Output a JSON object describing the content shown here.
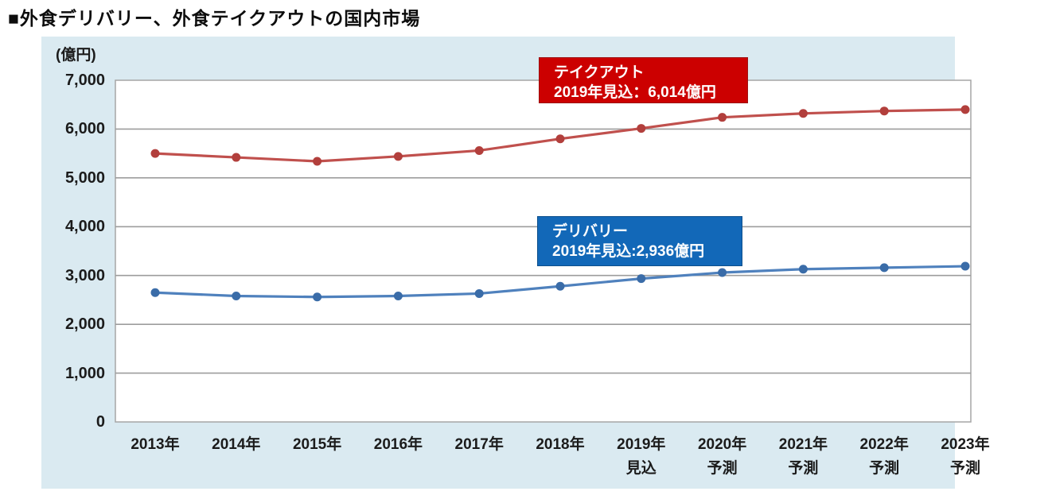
{
  "page": {
    "title": "■外食デリバリー、外食テイクアウトの国内市場"
  },
  "colors": {
    "panel_bg": "#daeaf1",
    "plot_bg": "#ffffff",
    "plot_border": "#a6a6a6",
    "gridline": "#9d9d9d",
    "takeout_line": "#c0504d",
    "takeout_marker": "#b23f3c",
    "takeout_box": "#cc0000",
    "delivery_line": "#4f81bd",
    "delivery_marker": "#3a6ca8",
    "delivery_box": "#1268b8",
    "axis_text": "#1b1b1b"
  },
  "chart_data": {
    "type": "line",
    "title": "外食デリバリー、外食テイクアウトの国内市場",
    "unit": "(億円)",
    "xlabel": "",
    "ylabel": "億円",
    "ylim": [
      0,
      7000
    ],
    "ytick_interval": 1000,
    "grid": "horizontal",
    "legend": "inline-callout-boxes",
    "categories": [
      "2013年",
      "2014年",
      "2015年",
      "2016年",
      "2017年",
      "2018年",
      "2019年",
      "2020年",
      "2021年",
      "2022年",
      "2023年"
    ],
    "category_notes": [
      "",
      "",
      "",
      "",
      "",
      "",
      "見込",
      "予測",
      "予測",
      "予測",
      "予測"
    ],
    "series": [
      {
        "id": "takeout",
        "name": "テイクアウト",
        "color": "#c0504d",
        "marker_color": "#b23f3c",
        "values": [
          5500,
          5420,
          5340,
          5440,
          5560,
          5800,
          6014,
          6240,
          6320,
          6370,
          6400
        ]
      },
      {
        "id": "delivery",
        "name": "デリバリー",
        "color": "#4f81bd",
        "marker_color": "#3a6ca8",
        "values": [
          2650,
          2580,
          2560,
          2580,
          2630,
          2780,
          2936,
          3060,
          3130,
          3160,
          3190
        ]
      }
    ],
    "annotations": [
      {
        "id": "takeout",
        "line1": "テイクアウト",
        "line2": "2019年見込：6,014億円",
        "bg": "#cc0000"
      },
      {
        "id": "delivery",
        "line1": "デリバリー",
        "line2": "2019年見込:2,936億円",
        "bg": "#1268b8"
      }
    ]
  }
}
